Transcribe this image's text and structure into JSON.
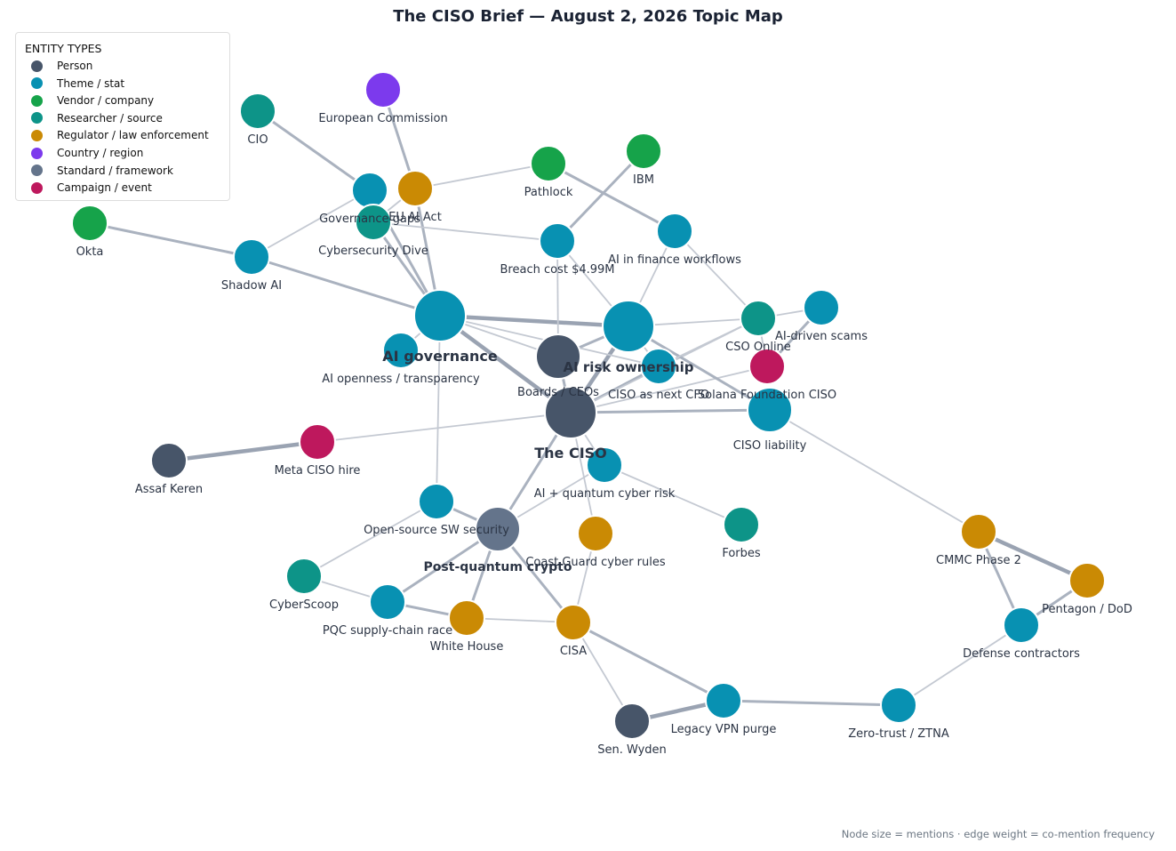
{
  "title": "The CISO Brief — August 2, 2026 Topic Map",
  "legend": {
    "title": "ENTITY TYPES",
    "items": [
      {
        "label": "Person",
        "color": "#475569"
      },
      {
        "label": "Theme / stat",
        "color": "#0891b2"
      },
      {
        "label": "Vendor / company",
        "color": "#16a34a"
      },
      {
        "label": "Researcher / source",
        "color": "#0d9488"
      },
      {
        "label": "Regulator / law enforcement",
        "color": "#ca8a04"
      },
      {
        "label": "Country / region",
        "color": "#7c3aed"
      },
      {
        "label": "Standard / framework",
        "color": "#64748b"
      },
      {
        "label": "Campaign / event",
        "color": "#be185d"
      }
    ]
  },
  "footnote": "Node size = mentions  ·  edge weight = co-mention frequency",
  "nodes": [
    {
      "id": "ciso",
      "label": "The CISO",
      "type": "Person",
      "size": 3
    },
    {
      "id": "aigov",
      "label": "AI governance",
      "type": "Theme / stat",
      "size": 3
    },
    {
      "id": "airisk",
      "label": "AI risk ownership",
      "type": "Theme / stat",
      "size": 3
    },
    {
      "id": "pqc",
      "label": "Post-quantum crypto",
      "type": "Standard / framework",
      "size": 2
    },
    {
      "id": "boards",
      "label": "Boards / CEOs",
      "type": "Person",
      "size": 2
    },
    {
      "id": "liability",
      "label": "CISO liability",
      "type": "Theme / stat",
      "size": 2
    },
    {
      "id": "cfo",
      "label": "CISO as next CFO",
      "type": "Theme / stat",
      "size": 1
    },
    {
      "id": "breach",
      "label": "Breach cost $4.99M",
      "type": "Theme / stat",
      "size": 1
    },
    {
      "id": "govgaps",
      "label": "Governance gaps",
      "type": "Theme / stat",
      "size": 1
    },
    {
      "id": "euai",
      "label": "EU AI Act",
      "type": "Regulator / law enforcement",
      "size": 1
    },
    {
      "id": "cyberdive",
      "label": "Cybersecurity Dive",
      "type": "Researcher / source",
      "size": 1
    },
    {
      "id": "eucomm",
      "label": "European Commission",
      "type": "Country / region",
      "size": 1
    },
    {
      "id": "cio",
      "label": "CIO",
      "type": "Researcher / source",
      "size": 1
    },
    {
      "id": "okta",
      "label": "Okta",
      "type": "Vendor / company",
      "size": 1
    },
    {
      "id": "shadow",
      "label": "Shadow AI",
      "type": "Theme / stat",
      "size": 1
    },
    {
      "id": "pathlock",
      "label": "Pathlock",
      "type": "Vendor / company",
      "size": 1
    },
    {
      "id": "ibm",
      "label": "IBM",
      "type": "Vendor / company",
      "size": 1
    },
    {
      "id": "aifin",
      "label": "AI in finance workflows",
      "type": "Theme / stat",
      "size": 1
    },
    {
      "id": "csoonline",
      "label": "CSO Online",
      "type": "Researcher / source",
      "size": 1
    },
    {
      "id": "aiscams",
      "label": "AI-driven scams",
      "type": "Theme / stat",
      "size": 1
    },
    {
      "id": "solana",
      "label": "Solana Foundation CISO",
      "type": "Campaign / event",
      "size": 1
    },
    {
      "id": "aiopen",
      "label": "AI openness / transparency",
      "type": "Theme / stat",
      "size": 1
    },
    {
      "id": "meta",
      "label": "Meta CISO hire",
      "type": "Campaign / event",
      "size": 1
    },
    {
      "id": "assaf",
      "label": "Assaf Keren",
      "type": "Person",
      "size": 1
    },
    {
      "id": "aiq",
      "label": "AI + quantum cyber risk",
      "type": "Theme / stat",
      "size": 1
    },
    {
      "id": "forbes",
      "label": "Forbes",
      "type": "Researcher / source",
      "size": 1
    },
    {
      "id": "oss",
      "label": "Open-source SW security",
      "type": "Theme / stat",
      "size": 1
    },
    {
      "id": "coastguard",
      "label": "Coast Guard cyber rules",
      "type": "Regulator / law enforcement",
      "size": 1
    },
    {
      "id": "cyberscoop",
      "label": "CyberScoop",
      "type": "Researcher / source",
      "size": 1
    },
    {
      "id": "pqcrace",
      "label": "PQC supply-chain race",
      "type": "Theme / stat",
      "size": 1
    },
    {
      "id": "whitehouse",
      "label": "White House",
      "type": "Regulator / law enforcement",
      "size": 1
    },
    {
      "id": "cisa",
      "label": "CISA",
      "type": "Regulator / law enforcement",
      "size": 1
    },
    {
      "id": "wyden",
      "label": "Sen. Wyden",
      "type": "Person",
      "size": 1
    },
    {
      "id": "vpn",
      "label": "Legacy VPN purge",
      "type": "Theme / stat",
      "size": 1
    },
    {
      "id": "ztna",
      "label": "Zero-trust / ZTNA",
      "type": "Theme / stat",
      "size": 1
    },
    {
      "id": "cmmc",
      "label": "CMMC Phase 2",
      "type": "Regulator / law enforcement",
      "size": 1
    },
    {
      "id": "pentagon",
      "label": "Pentagon / DoD",
      "type": "Regulator / law enforcement",
      "size": 1
    },
    {
      "id": "defense",
      "label": "Defense contractors",
      "type": "Theme / stat",
      "size": 1
    }
  ],
  "edges": [
    {
      "source": "ciso",
      "target": "aigov",
      "weight": 3
    },
    {
      "source": "ciso",
      "target": "airisk",
      "weight": 3
    },
    {
      "source": "aigov",
      "target": "airisk",
      "weight": 3
    },
    {
      "source": "ciso",
      "target": "boards",
      "weight": 2
    },
    {
      "source": "ciso",
      "target": "liability",
      "weight": 2
    },
    {
      "source": "ciso",
      "target": "cfo",
      "weight": 2
    },
    {
      "source": "ciso",
      "target": "pqc",
      "weight": 2
    },
    {
      "source": "ciso",
      "target": "meta",
      "weight": 1
    },
    {
      "source": "ciso",
      "target": "aiq",
      "weight": 1
    },
    {
      "source": "ciso",
      "target": "coastguard",
      "weight": 1
    },
    {
      "source": "ciso",
      "target": "csoonline",
      "weight": 1
    },
    {
      "source": "ciso",
      "target": "solana",
      "weight": 1
    },
    {
      "source": "airisk",
      "target": "liability",
      "weight": 2
    },
    {
      "source": "airisk",
      "target": "boards",
      "weight": 2
    },
    {
      "source": "airisk",
      "target": "cfo",
      "weight": 1
    },
    {
      "source": "airisk",
      "target": "csoonline",
      "weight": 1
    },
    {
      "source": "airisk",
      "target": "breach",
      "weight": 1
    },
    {
      "source": "airisk",
      "target": "aifin",
      "weight": 1
    },
    {
      "source": "aigov",
      "target": "govgaps",
      "weight": 2
    },
    {
      "source": "aigov",
      "target": "euai",
      "weight": 2
    },
    {
      "source": "aigov",
      "target": "cyberdive",
      "weight": 2
    },
    {
      "source": "aigov",
      "target": "shadow",
      "weight": 2
    },
    {
      "source": "aigov",
      "target": "boards",
      "weight": 1
    },
    {
      "source": "aigov",
      "target": "aiopen",
      "weight": 1
    },
    {
      "source": "aigov",
      "target": "oss",
      "weight": 1
    },
    {
      "source": "aigov",
      "target": "cfo",
      "weight": 1
    },
    {
      "source": "govgaps",
      "target": "cio",
      "weight": 2
    },
    {
      "source": "euai",
      "target": "eucomm",
      "weight": 2
    },
    {
      "source": "euai",
      "target": "pathlock",
      "weight": 1
    },
    {
      "source": "euai",
      "target": "cyberdive",
      "weight": 1
    },
    {
      "source": "okta",
      "target": "shadow",
      "weight": 2
    },
    {
      "source": "shadow",
      "target": "govgaps",
      "weight": 1
    },
    {
      "source": "cyberdive",
      "target": "breach",
      "weight": 1
    },
    {
      "source": "pathlock",
      "target": "aifin",
      "weight": 2
    },
    {
      "source": "ibm",
      "target": "breach",
      "weight": 2
    },
    {
      "source": "breach",
      "target": "boards",
      "weight": 1
    },
    {
      "source": "aifin",
      "target": "csoonline",
      "weight": 1
    },
    {
      "source": "csoonline",
      "target": "aiscams",
      "weight": 1
    },
    {
      "source": "csoonline",
      "target": "solana",
      "weight": 1
    },
    {
      "source": "aiscams",
      "target": "solana",
      "weight": 2
    },
    {
      "source": "csoonline",
      "target": "cfo",
      "weight": 1
    },
    {
      "source": "liability",
      "target": "cmmc",
      "weight": 1
    },
    {
      "source": "meta",
      "target": "assaf",
      "weight": 3
    },
    {
      "source": "aiq",
      "target": "forbes",
      "weight": 1
    },
    {
      "source": "aiq",
      "target": "pqc",
      "weight": 1
    },
    {
      "source": "pqc",
      "target": "oss",
      "weight": 2
    },
    {
      "source": "pqc",
      "target": "pqcrace",
      "weight": 2
    },
    {
      "source": "pqc",
      "target": "whitehouse",
      "weight": 2
    },
    {
      "source": "pqc",
      "target": "cisa",
      "weight": 2
    },
    {
      "source": "oss",
      "target": "cyberscoop",
      "weight": 1
    },
    {
      "source": "cyberscoop",
      "target": "pqcrace",
      "weight": 1
    },
    {
      "source": "pqcrace",
      "target": "whitehouse",
      "weight": 2
    },
    {
      "source": "whitehouse",
      "target": "cisa",
      "weight": 1
    },
    {
      "source": "coastguard",
      "target": "cisa",
      "weight": 1
    },
    {
      "source": "cisa",
      "target": "wyden",
      "weight": 1
    },
    {
      "source": "cisa",
      "target": "vpn",
      "weight": 2
    },
    {
      "source": "wyden",
      "target": "vpn",
      "weight": 3
    },
    {
      "source": "vpn",
      "target": "ztna",
      "weight": 2
    },
    {
      "source": "ztna",
      "target": "defense",
      "weight": 1
    },
    {
      "source": "cmmc",
      "target": "pentagon",
      "weight": 3
    },
    {
      "source": "cmmc",
      "target": "defense",
      "weight": 2
    },
    {
      "source": "pentagon",
      "target": "defense",
      "weight": 2
    }
  ]
}
